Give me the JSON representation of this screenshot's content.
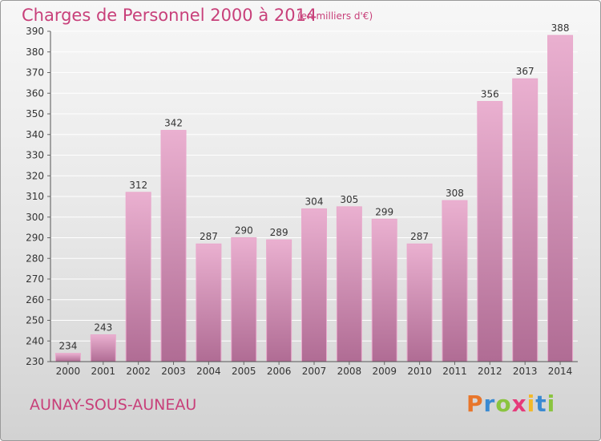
{
  "header": {
    "title": "Charges de Personnel 2000 à 2014",
    "subtitle": "(en milliers d'€)"
  },
  "footer": {
    "commune": "AUNAY-SOUS-AUNEAU",
    "brand": "Proxiti"
  },
  "colors": {
    "title": "#c8407a",
    "bar_top": "#eab0d0",
    "bar_bottom": "#b06c94",
    "grid": "#ffffff"
  },
  "chart_data": {
    "type": "bar",
    "categories": [
      "2000",
      "2001",
      "2002",
      "2003",
      "2004",
      "2005",
      "2006",
      "2007",
      "2008",
      "2009",
      "2010",
      "2011",
      "2012",
      "2013",
      "2014"
    ],
    "values": [
      234,
      243,
      312,
      342,
      287,
      290,
      289,
      304,
      305,
      299,
      287,
      308,
      356,
      367,
      388
    ],
    "title": "Charges de Personnel 2000 à 2014",
    "subtitle": "(en milliers d'€)",
    "xlabel": "",
    "ylabel": "",
    "ylim": [
      230,
      390
    ],
    "yticks": [
      230,
      240,
      250,
      260,
      270,
      280,
      290,
      300,
      310,
      320,
      330,
      340,
      350,
      360,
      370,
      380,
      390
    ],
    "grid": true,
    "data_labels": true
  }
}
